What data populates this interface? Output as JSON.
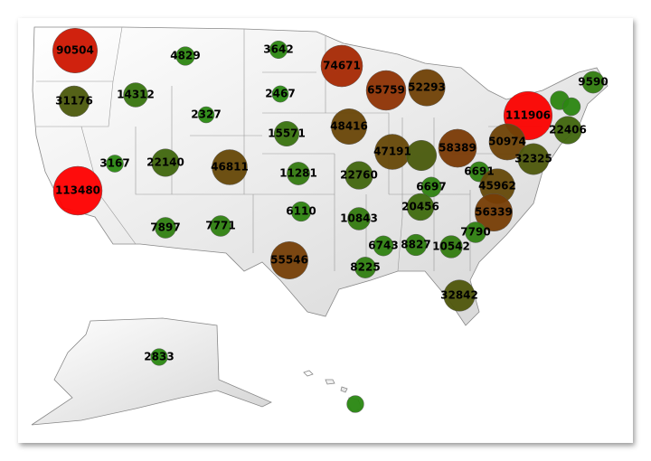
{
  "chart_data": {
    "type": "bubble-map",
    "series": [
      {
        "labels": true,
        "values": [
          90504,
          4829,
          3642,
          74671,
          65759,
          52293,
          9590,
          31176,
          14312,
          2327,
          2467,
          48416,
          111906,
          22406,
          15571,
          47191,
          58389,
          50974,
          3167,
          22140,
          46811,
          11281,
          22760,
          6691,
          32325,
          113480,
          6697,
          45962,
          6110,
          10843,
          20456,
          56339,
          7897,
          7771,
          7790,
          6743,
          8827,
          10542,
          55546,
          8225,
          32842,
          2833
        ]
      },
      {
        "labels": false,
        "values": [
          30000,
          5000,
          4000,
          3000
        ]
      }
    ],
    "colors": [
      "#2a8a12",
      "#4a5a0c",
      "#7a3c06",
      "#c41c02",
      "#ff0000"
    ]
  }
}
